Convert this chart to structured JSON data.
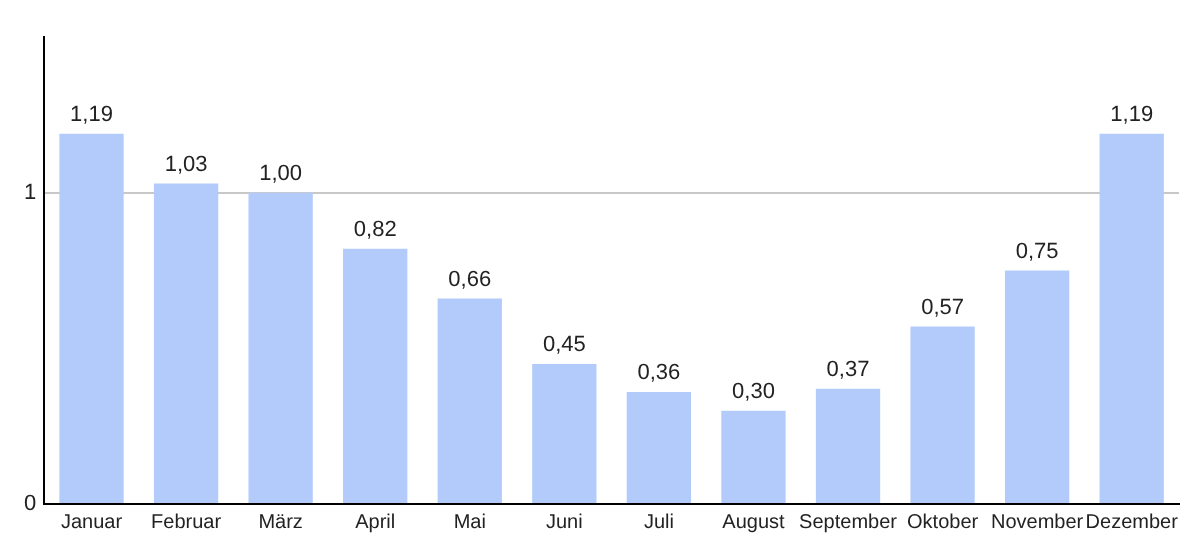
{
  "chart_data": {
    "type": "bar",
    "categories": [
      "Januar",
      "Februar",
      "März",
      "April",
      "Mai",
      "Juni",
      "Juli",
      "August",
      "September",
      "Oktober",
      "November",
      "Dezember"
    ],
    "values": [
      1.19,
      1.03,
      1.0,
      0.82,
      0.66,
      0.45,
      0.36,
      0.3,
      0.37,
      0.57,
      0.75,
      1.19
    ],
    "value_labels": [
      "1,19",
      "1,03",
      "1,00",
      "0,82",
      "0,66",
      "0,45",
      "0,36",
      "0,30",
      "0,37",
      "0,57",
      "0,75",
      "1,19"
    ],
    "color": "#b3cbfb",
    "ylim": [
      0,
      1.5
    ],
    "yticks": [
      0,
      1
    ],
    "grid": "y",
    "legend": false
  }
}
